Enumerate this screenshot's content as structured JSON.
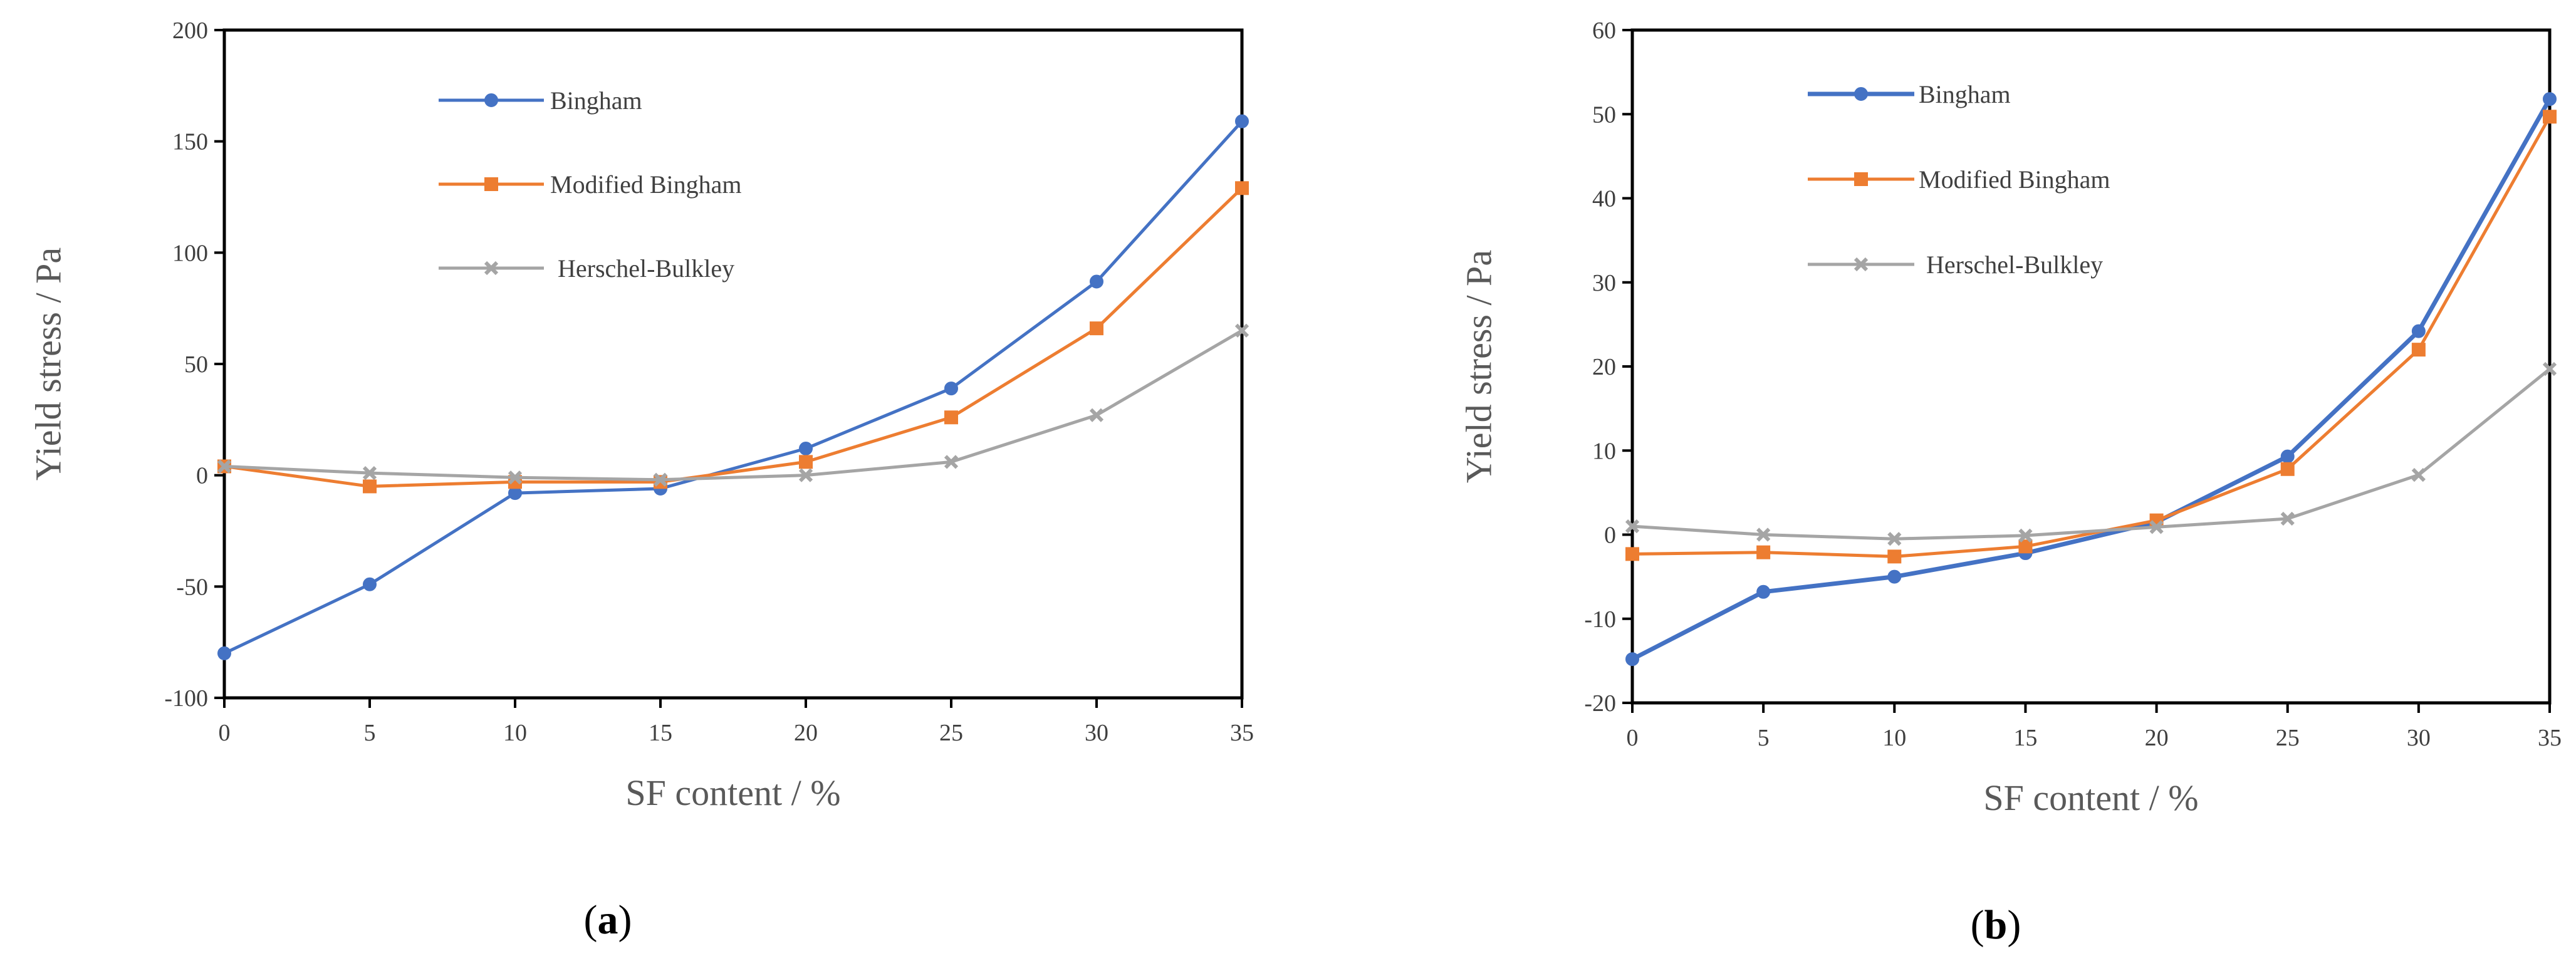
{
  "colors": {
    "bingham": "#4472c4",
    "modified_bingham": "#ed7d31",
    "herschel_bulkley": "#a5a5a5"
  },
  "chart_data": [
    {
      "type": "line",
      "panel_label": "a",
      "xlabel": "SF content / %",
      "ylabel": "Yield stress / Pa",
      "x": [
        0,
        5,
        10,
        15,
        20,
        25,
        30,
        35
      ],
      "xlim": [
        0,
        35
      ],
      "ylim": [
        -100,
        200
      ],
      "x_ticks": [
        "0",
        "5",
        "10",
        "15",
        "20",
        "25",
        "30",
        "35"
      ],
      "y_ticks": [
        "-100",
        "-50",
        "0",
        "50",
        "100",
        "150",
        "200"
      ],
      "legend_position": "top-center",
      "series": [
        {
          "name": "Bingham",
          "marker": "circle",
          "values": [
            -80,
            -49,
            -8,
            -6,
            12,
            39,
            87,
            159
          ]
        },
        {
          "name": "Modified Bingham",
          "marker": "square",
          "values": [
            4,
            -5,
            -3,
            -3,
            6,
            26,
            66,
            129
          ]
        },
        {
          "name": "Herschel-Bulkley",
          "marker": "x",
          "values": [
            4,
            1,
            -1,
            -2,
            0,
            6,
            27,
            65
          ]
        }
      ]
    },
    {
      "type": "line",
      "panel_label": "b",
      "xlabel": "SF content / %",
      "ylabel": "Yield stress / Pa",
      "x": [
        0,
        5,
        10,
        15,
        20,
        25,
        30,
        35
      ],
      "xlim": [
        0,
        35
      ],
      "ylim": [
        -20,
        60
      ],
      "x_ticks": [
        "0",
        "5",
        "10",
        "15",
        "20",
        "25",
        "30",
        "35"
      ],
      "y_ticks": [
        "-20",
        "-10",
        "0",
        "10",
        "20",
        "30",
        "40",
        "50",
        "60"
      ],
      "legend_position": "top-left",
      "series": [
        {
          "name": "Bingham",
          "marker": "circle",
          "values": [
            -14.8,
            -6.8,
            -5,
            -2.2,
            1.5,
            9.3,
            24.2,
            51.8
          ]
        },
        {
          "name": "Modified Bingham",
          "marker": "square",
          "values": [
            -2.3,
            -2.1,
            -2.6,
            -1.4,
            1.7,
            7.8,
            22,
            49.7
          ]
        },
        {
          "name": "Herschel-Bulkley",
          "marker": "x",
          "values": [
            1,
            0,
            -0.5,
            -0.1,
            0.9,
            1.9,
            7.1,
            19.7
          ]
        }
      ]
    }
  ]
}
